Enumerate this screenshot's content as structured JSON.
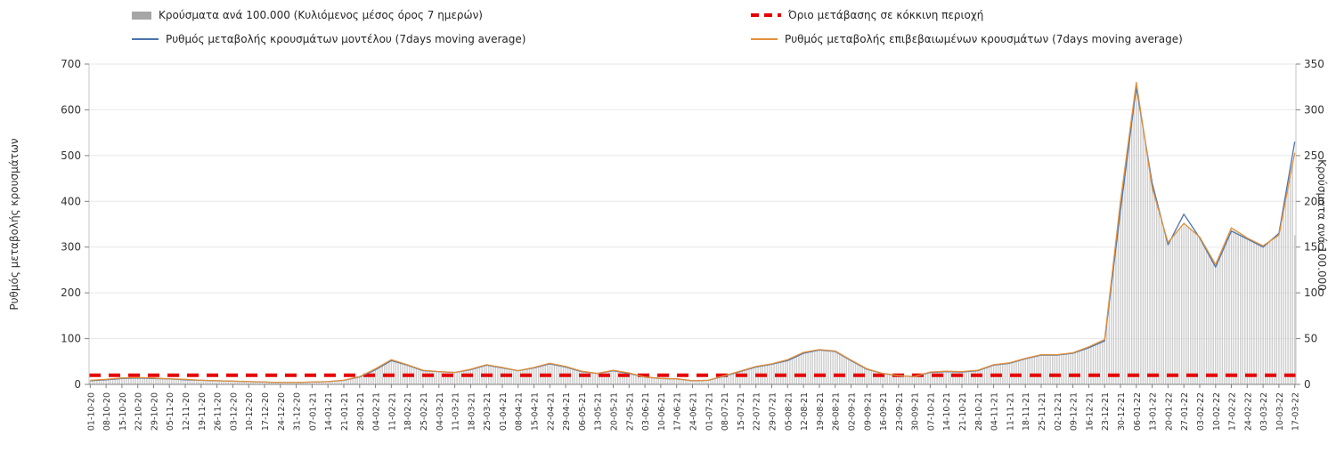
{
  "legend": {
    "items": [
      {
        "label": "Κρούσματα ανά 100.000 (Κυλιόμενος μέσος όρος 7 ημερών)",
        "swatch": "gray-bar"
      },
      {
        "label": "Όριο μετάβασης σε κόκκινη περιοχή",
        "swatch": "red-dashed-line"
      },
      {
        "label": "Ρυθμός μεταβολής κρουσμάτων μοντέλου (7days moving average)",
        "swatch": "blue-line"
      },
      {
        "label": "Ρυθμός μεταβολής επιβεβαιωμένων κρουσμάτων (7days moving average)",
        "swatch": "orange-line"
      }
    ]
  },
  "colors": {
    "bar": "#cccccc",
    "bar_legend": "#a6a6a6",
    "threshold": "#e60000",
    "model_line": "#4a74ad",
    "confirmed_line": "#e2903b",
    "grid": "#e7e7e7",
    "axis": "#808080",
    "axis_light": "#c6c6c6",
    "text": "#333333"
  },
  "chart_data": {
    "type": "bar+line",
    "title": "",
    "left_axis": {
      "title": "Ρυθμός μεταβολής κρουσμάτων",
      "min": 0,
      "max": 700,
      "tick_step": 100,
      "ticks": [
        0,
        100,
        200,
        300,
        400,
        500,
        600,
        700
      ]
    },
    "right_axis": {
      "title": "Κρούσματα ανά 100.000",
      "min": 0,
      "max": 350,
      "tick_step": 50,
      "ticks": [
        0,
        50,
        100,
        150,
        200,
        250,
        300,
        350
      ]
    },
    "threshold": {
      "label": "Όριο μετάβασης σε κόκκινη περιοχή",
      "value_left_axis": 20,
      "value_right_axis": 10
    },
    "grid": "horizontal-only",
    "legend_position": "top",
    "categories": [
      "01-10-20",
      "08-10-20",
      "15-10-20",
      "22-10-20",
      "29-10-20",
      "05-11-20",
      "12-11-20",
      "19-11-20",
      "26-11-20",
      "03-12-20",
      "10-12-20",
      "17-12-20",
      "24-12-20",
      "31-12-20",
      "07-01-21",
      "14-01-21",
      "21-01-21",
      "28-01-21",
      "04-02-21",
      "11-02-21",
      "18-02-21",
      "25-02-21",
      "04-03-21",
      "11-03-21",
      "18-03-21",
      "25-03-21",
      "01-04-21",
      "08-04-21",
      "15-04-21",
      "22-04-21",
      "29-04-21",
      "06-05-21",
      "13-05-21",
      "20-05-21",
      "27-05-21",
      "03-06-21",
      "10-06-21",
      "17-06-21",
      "24-06-21",
      "01-07-21",
      "08-07-21",
      "15-07-21",
      "22-07-21",
      "29-07-21",
      "05-08-21",
      "12-08-21",
      "19-08-21",
      "26-08-21",
      "02-09-21",
      "09-09-21",
      "16-09-21",
      "23-09-21",
      "30-09-21",
      "07-10-21",
      "14-10-21",
      "21-10-21",
      "28-10-21",
      "04-11-21",
      "11-11-21",
      "18-11-21",
      "25-11-21",
      "02-12-21",
      "09-12-21",
      "16-12-21",
      "23-12-21",
      "30-12-21",
      "06-01-22",
      "13-01-22",
      "20-01-22",
      "27-01-22",
      "03-02-22",
      "10-02-22",
      "17-02-22",
      "24-02-22",
      "03-03-22",
      "10-03-22",
      "17-03-22"
    ],
    "series": [
      {
        "name": "Κρούσματα ανά 100.000 (Κυλιόμενος μέσος όρος 7 ημερών)",
        "type": "bar",
        "axis": "right",
        "color": "#cccccc",
        "values": [
          4,
          5,
          7,
          7,
          7,
          6,
          5,
          4,
          4,
          3,
          3,
          2,
          2,
          2,
          2,
          3,
          4,
          8,
          17,
          27,
          21,
          15,
          14,
          13,
          16,
          21,
          18,
          15,
          18,
          23,
          19,
          14,
          12,
          15,
          12,
          8,
          6,
          6,
          4,
          4,
          9,
          14,
          19,
          22,
          27,
          35,
          38,
          36,
          26,
          17,
          12,
          9,
          8,
          13,
          14,
          14,
          15,
          21,
          23,
          28,
          32,
          32,
          34,
          41,
          49,
          200,
          330,
          215,
          155,
          176,
          161,
          131,
          171,
          160,
          151,
          163,
          253
        ]
      },
      {
        "name": "Ρυθμός μεταβολής κρουσμάτων μοντέλου (7days moving average)",
        "type": "line",
        "axis": "left",
        "color": "#4a74ad",
        "values": [
          8,
          10,
          13,
          14,
          13,
          12,
          10,
          9,
          8,
          7,
          6,
          5,
          4,
          4,
          5,
          6,
          9,
          16,
          32,
          52,
          42,
          30,
          28,
          26,
          32,
          42,
          36,
          30,
          36,
          45,
          38,
          28,
          24,
          30,
          24,
          16,
          13,
          12,
          8,
          9,
          18,
          28,
          38,
          44,
          52,
          68,
          75,
          72,
          52,
          33,
          24,
          19,
          17,
          26,
          28,
          27,
          30,
          42,
          46,
          56,
          64,
          64,
          68,
          80,
          95,
          380,
          650,
          440,
          305,
          372,
          320,
          256,
          335,
          318,
          300,
          330,
          530
        ]
      },
      {
        "name": "Ρυθμός μεταβολής επιβεβαιωμένων κρουσμάτων (7days moving average)",
        "type": "line",
        "axis": "left",
        "color": "#e2903b",
        "values": [
          9,
          11,
          14,
          15,
          14,
          12,
          11,
          9,
          8,
          7,
          6,
          5,
          4,
          4,
          5,
          6,
          9,
          17,
          34,
          54,
          43,
          31,
          28,
          26,
          33,
          43,
          37,
          30,
          37,
          46,
          39,
          29,
          24,
          31,
          25,
          16,
          13,
          12,
          8,
          9,
          19,
          29,
          39,
          45,
          54,
          70,
          76,
          73,
          53,
          34,
          24,
          19,
          17,
          27,
          29,
          28,
          31,
          43,
          47,
          57,
          65,
          65,
          69,
          82,
          98,
          400,
          660,
          430,
          310,
          352,
          322,
          262,
          342,
          320,
          303,
          326,
          506
        ]
      }
    ]
  }
}
